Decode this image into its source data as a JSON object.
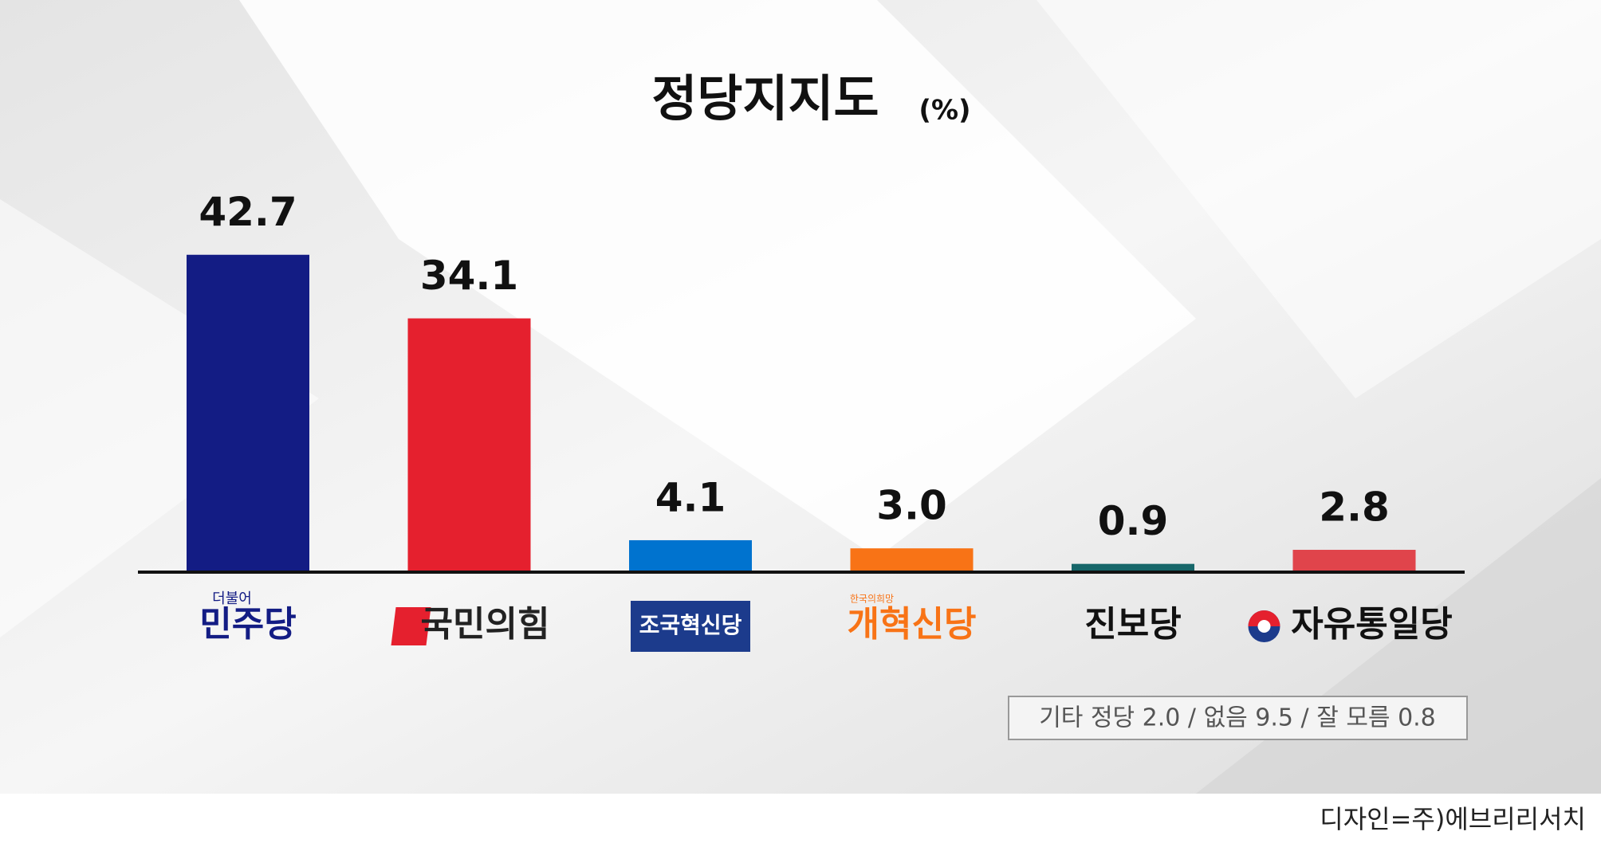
{
  "chart_data": {
    "type": "bar",
    "title": "정당지지도",
    "unit": "(%)",
    "categories": [
      "민주당",
      "국민의힘",
      "조국혁신당",
      "개혁신당",
      "진보당",
      "자유통일당"
    ],
    "logo_captions": [
      "더불어",
      null,
      null,
      "한국의희망",
      null,
      null
    ],
    "values": [
      42.7,
      34.1,
      4.1,
      3.0,
      0.9,
      2.8
    ],
    "value_labels": [
      "42.7",
      "34.1",
      "4.1",
      "3.0",
      "0.9",
      "2.8"
    ],
    "colors": [
      "#131c84",
      "#e5202e",
      "#0073cf",
      "#f87316",
      "#17676a",
      "#e0444b"
    ],
    "ylim": [
      0,
      50
    ],
    "note": "기타 정당 2.0 / 없음 9.5 / 잘 모름 0.8",
    "source": "디자인=주)에브리리서치"
  }
}
